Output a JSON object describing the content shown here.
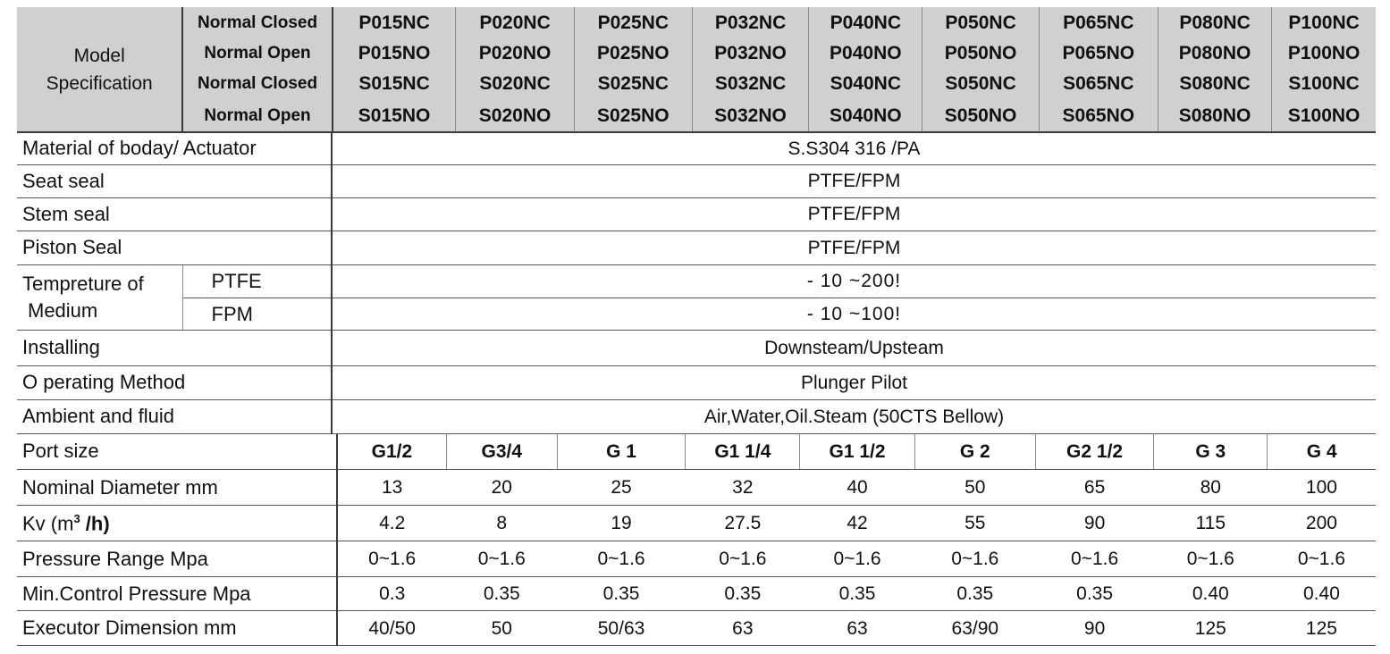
{
  "header": {
    "label_line1": "Model",
    "label_line2": "Specification",
    "rows": [
      {
        "type": "Normal Closed",
        "models": [
          "P015NC",
          "P020NC",
          "P025NC",
          "P032NC",
          "P040NC",
          "P050NC",
          "P065NC",
          "P080NC",
          "P100NC"
        ]
      },
      {
        "type": "Normal Open",
        "models": [
          "P015NO",
          "P020NO",
          "P025NO",
          "P032NO",
          "P040NO",
          "P050NO",
          "P065NO",
          "P080NO",
          "P100NO"
        ]
      },
      {
        "type": "Normal Closed",
        "models": [
          "S015NC",
          "S020NC",
          "S025NC",
          "S032NC",
          "S040NC",
          "S050NC",
          "S065NC",
          "S080NC",
          "S100NC"
        ]
      },
      {
        "type": "Normal Open",
        "models": [
          "S015NO",
          "S020NO",
          "S025NO",
          "S032NO",
          "S040NO",
          "S050NO",
          "S065NO",
          "S080NO",
          "S100NO"
        ]
      }
    ]
  },
  "common": [
    {
      "label": "Material of boday/ Actuator",
      "value": "S.S304 316 /PA"
    },
    {
      "label": "Seat seal",
      "value": "PTFE/FPM"
    },
    {
      "label": "Stem seal",
      "value": "PTFE/FPM"
    },
    {
      "label": "Piston Seal",
      "value": "PTFE/FPM"
    }
  ],
  "temperature": {
    "label_line1": "Tempreture of",
    "label_line2": "Medium",
    "rows": [
      {
        "sub": "PTFE",
        "value": "- 10 ~200!"
      },
      {
        "sub": "FPM",
        "value": "- 10 ~100!"
      }
    ]
  },
  "common2": [
    {
      "label": "Installing",
      "value": "Downsteam/Upsteam"
    },
    {
      "label": "O perating Method",
      "value": "Plunger Pilot"
    },
    {
      "label": "Ambient and fluid",
      "value": "Air,Water,Oil.Steam (50CTS Bellow)"
    }
  ],
  "sizes": [
    {
      "label": "Port size",
      "bold": true,
      "values": [
        "G1/2",
        "G3/4",
        "G 1",
        "G1 1/4",
        "G1 1/2",
        "G 2",
        "G2 1/2",
        "G 3",
        "G 4"
      ]
    },
    {
      "label": "Nominal Diameter mm",
      "bold": false,
      "values": [
        "13",
        "20",
        "25",
        "32",
        "40",
        "50",
        "65",
        "80",
        "100"
      ]
    },
    {
      "label_prefix": "Kv (m",
      "label_sup": "3",
      "label_suffix": " /h)",
      "bold": false,
      "values": [
        "4.2",
        "8",
        "19",
        "27.5",
        "42",
        "55",
        "90",
        "115",
        "200"
      ]
    },
    {
      "label": "Pressure Range  Mpa",
      "bold": false,
      "values": [
        "0~1.6",
        "0~1.6",
        "0~1.6",
        "0~1.6",
        "0~1.6",
        "0~1.6",
        "0~1.6",
        "0~1.6",
        "0~1.6"
      ]
    },
    {
      "label": "Min.Control Pressure Mpa",
      "bold": false,
      "values": [
        "0.3",
        "0.35",
        "0.35",
        "0.35",
        "0.35",
        "0.35",
        "0.35",
        "0.40",
        "0.40"
      ]
    },
    {
      "label": "Executor Dimension mm",
      "bold": false,
      "values": [
        "40/50",
        "50",
        "50/63",
        "63",
        "63",
        "63/90",
        "90",
        "125",
        "125"
      ]
    }
  ]
}
